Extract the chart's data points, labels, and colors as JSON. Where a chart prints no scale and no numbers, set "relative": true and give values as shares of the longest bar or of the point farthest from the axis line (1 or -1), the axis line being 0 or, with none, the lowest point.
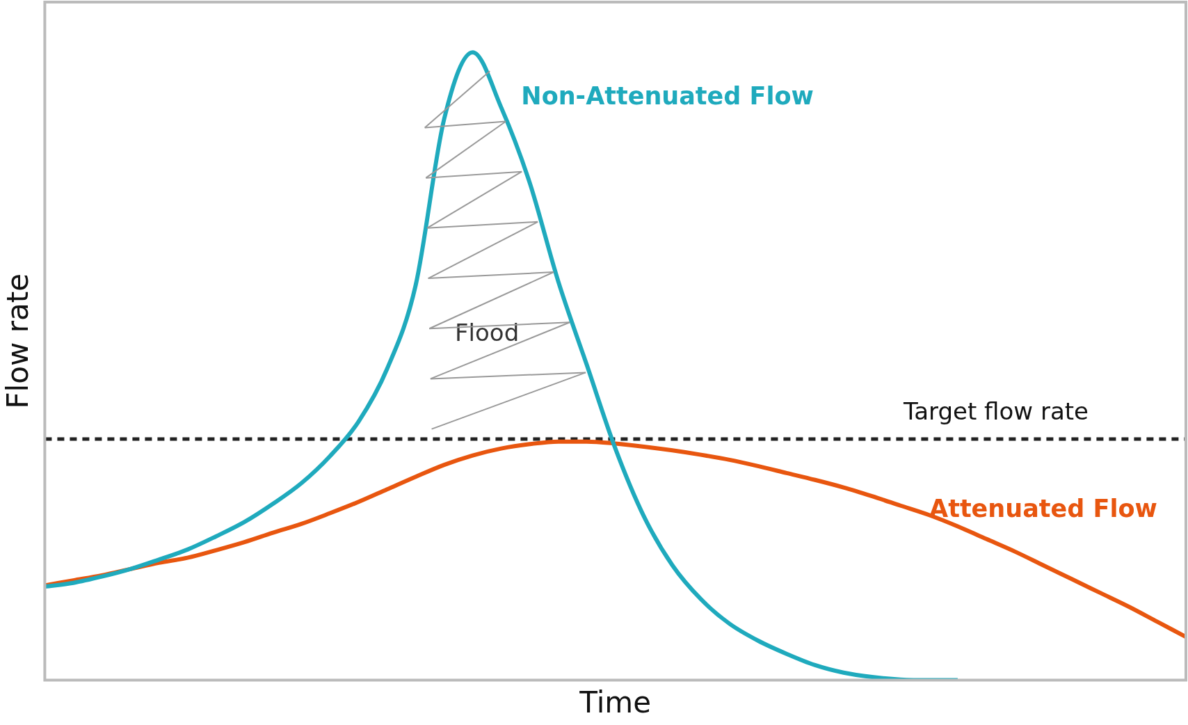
{
  "chart_data": {
    "type": "line",
    "relative": true,
    "xlabel": "Time",
    "ylabel": "Flow rate",
    "categories": [
      null,
      null,
      null,
      null,
      null,
      null,
      null,
      null,
      null,
      null,
      null,
      null,
      null,
      null,
      null,
      null,
      null,
      null,
      null,
      null,
      null,
      null,
      null,
      null,
      null,
      null,
      null,
      null,
      null,
      null,
      null,
      null,
      null,
      null,
      null,
      null,
      null,
      null,
      null,
      null,
      null
    ],
    "series": [
      {
        "name": "Non-Attenuated Flow",
        "color": "#1faabd",
        "values": [
          0.149,
          0.155,
          0.165,
          0.177,
          0.192,
          0.208,
          0.229,
          0.252,
          0.281,
          0.314,
          0.357,
          0.412,
          0.496,
          0.629,
          0.894,
          1,
          0.912,
          0.792,
          0.635,
          0.502,
          0.369,
          0.261,
          0.183,
          0.129,
          0.09,
          0.063,
          0.042,
          0.024,
          0.012,
          0.005,
          0.001,
          0,
          0,
          null,
          null,
          null,
          null,
          null,
          null,
          null,
          null
        ]
      },
      {
        "name": "Attenuated Flow",
        "color": "#e8560f",
        "values": [
          0.151,
          0.159,
          0.167,
          0.177,
          0.187,
          0.195,
          0.207,
          0.22,
          0.235,
          0.249,
          0.266,
          0.284,
          0.304,
          0.324,
          0.343,
          0.358,
          0.369,
          0.376,
          0.38,
          0.38,
          0.377,
          0.372,
          0.366,
          0.359,
          0.351,
          0.341,
          0.33,
          0.319,
          0.307,
          0.293,
          0.278,
          0.263,
          0.245,
          0.225,
          0.205,
          0.183,
          0.161,
          0.139,
          0.117,
          0.093,
          0.069
        ]
      }
    ],
    "ref_lines": [
      {
        "axis": "y",
        "value": 0.384,
        "label": "Target flow rate",
        "color": "#222222",
        "line_style": "dashed"
      }
    ],
    "annotations": [
      "Flood"
    ],
    "grid": false,
    "legend": false,
    "tick_labels": false,
    "marker": "none",
    "line_style": "solid"
  }
}
